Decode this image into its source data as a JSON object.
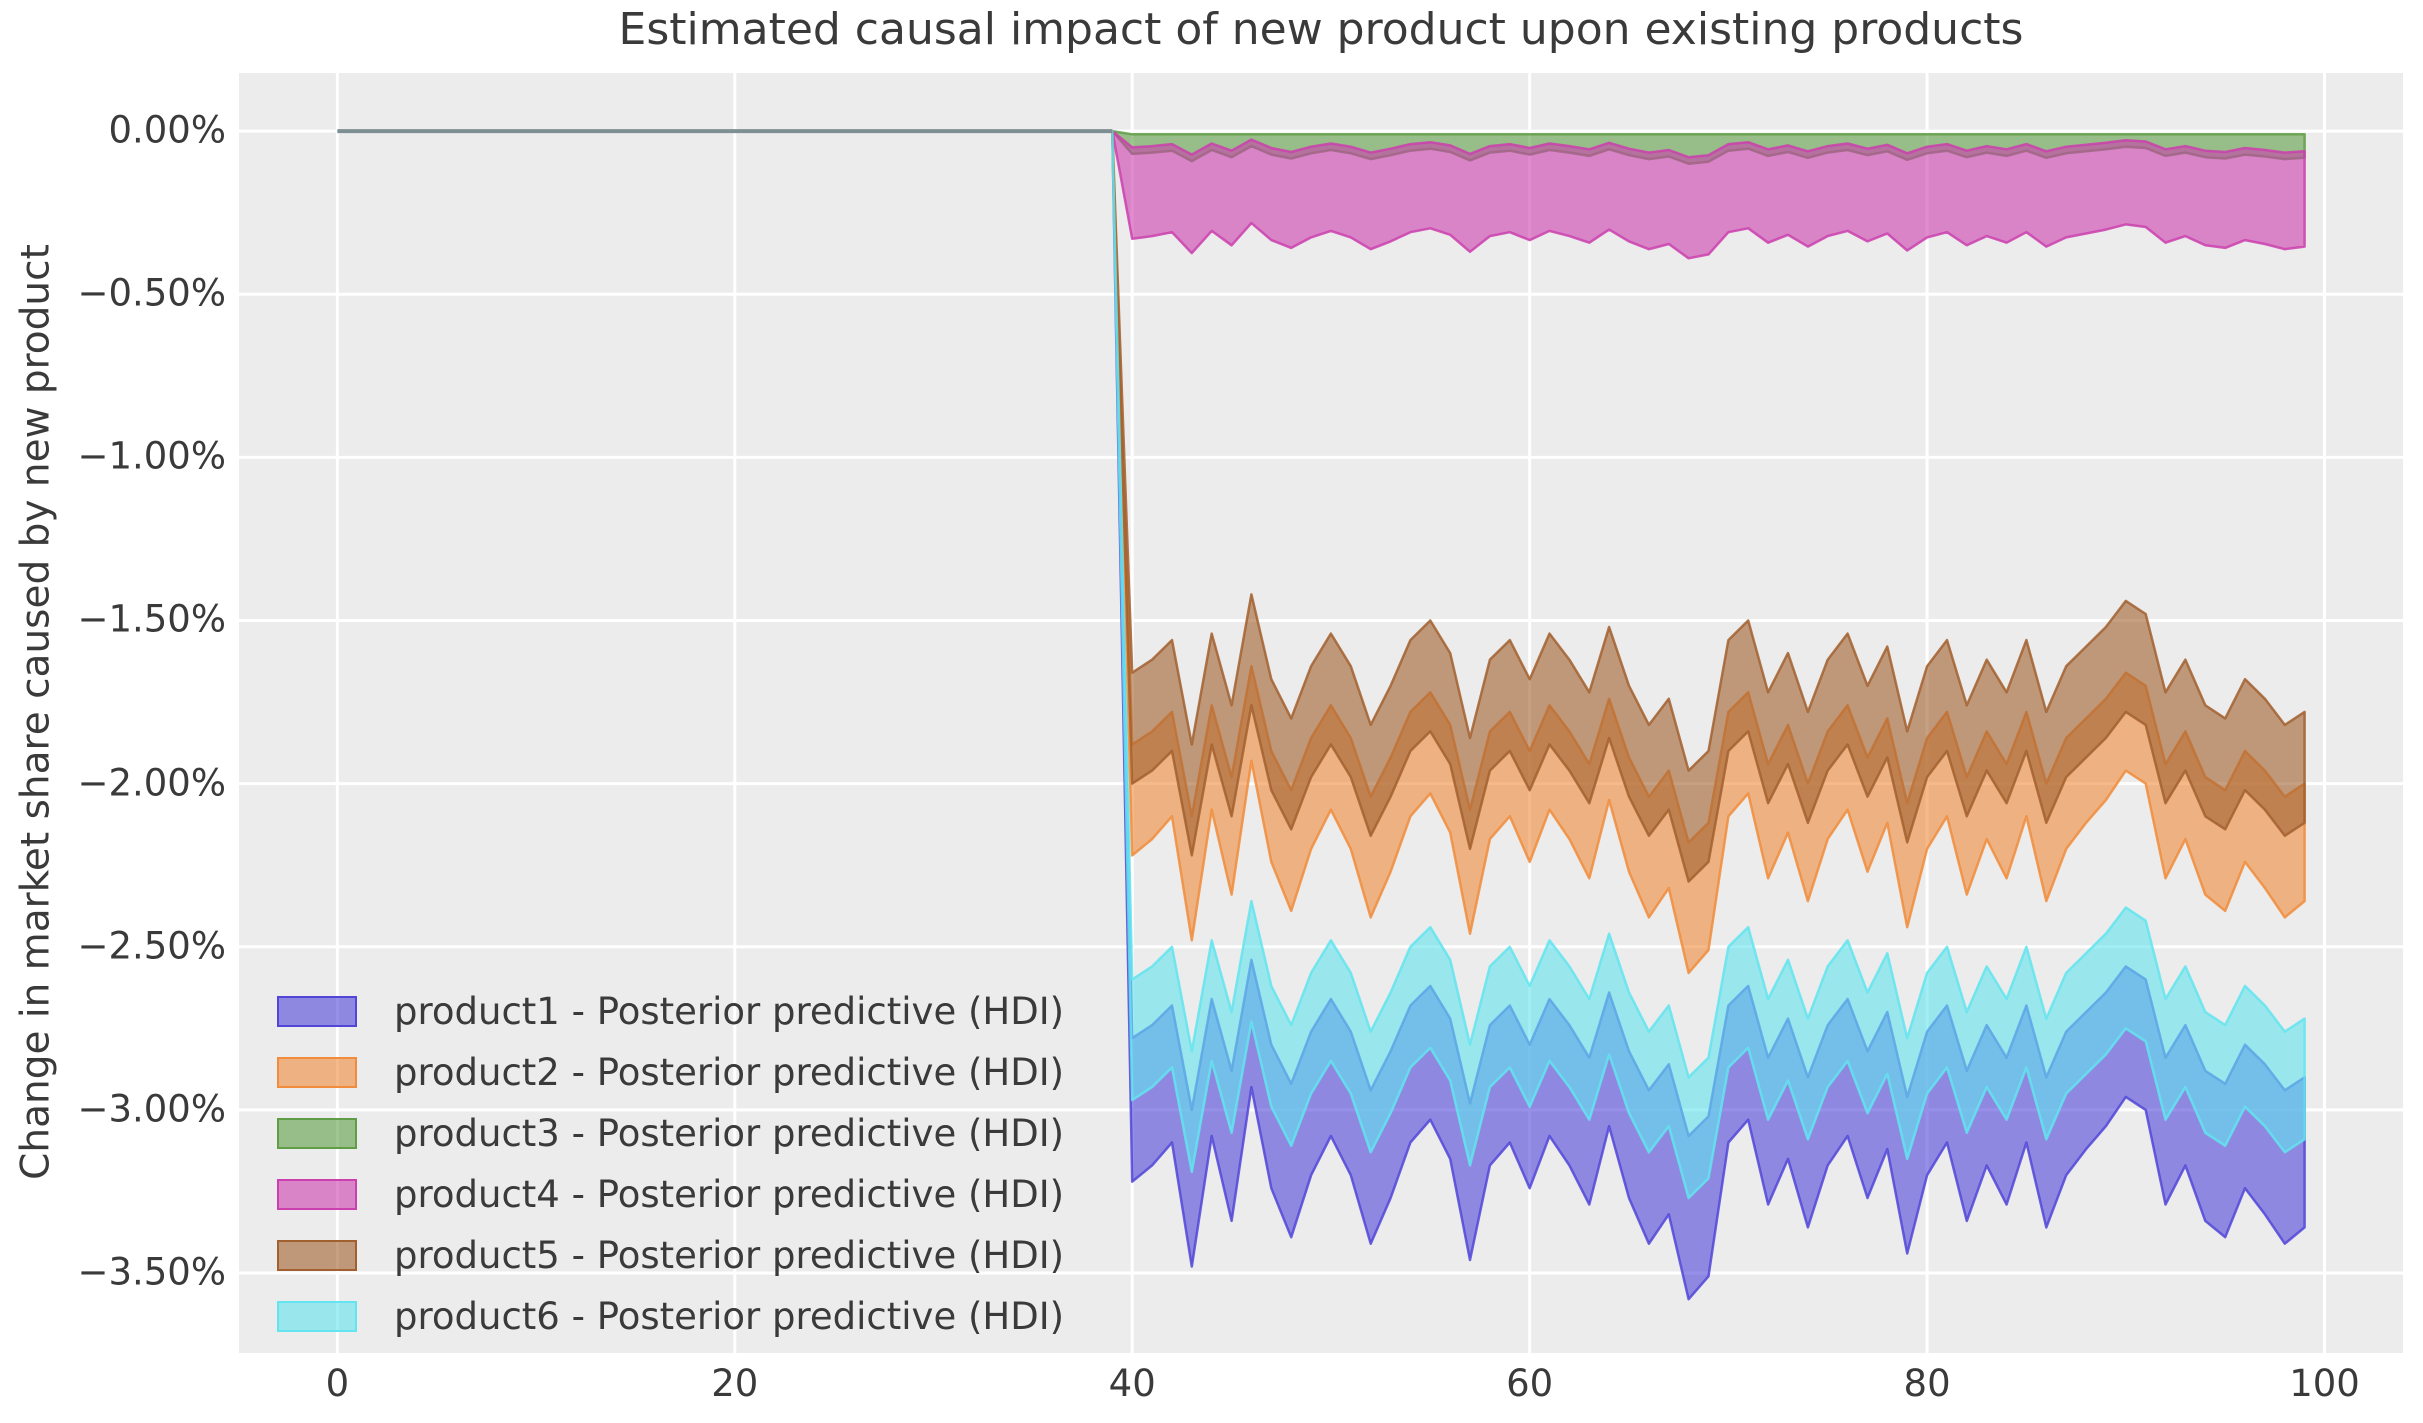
{
  "figure": {
    "title": "Estimated causal impact of new product upon existing products",
    "ylabel": "Change in market share caused by new product",
    "xlabel": "",
    "background": "#ffffff",
    "axes_background": "#ececec",
    "grid_color": "#ffffff",
    "text_color": "#3a3a3a"
  },
  "chart_data": {
    "type": "area",
    "title": "Estimated causal impact of new product upon existing products",
    "xlabel": "",
    "ylabel": "Change in market share caused by new product",
    "grid": true,
    "legend_position": "lower left",
    "xlim": [
      -4.95,
      103.95
    ],
    "ylim": [
      0.178,
      -3.745
    ],
    "x_ticks": [
      {
        "label": "0",
        "value": 0
      },
      {
        "label": "20",
        "value": 20
      },
      {
        "label": "40",
        "value": 40
      },
      {
        "label": "60",
        "value": 60
      },
      {
        "label": "80",
        "value": 80
      },
      {
        "label": "100",
        "value": 100
      }
    ],
    "y_ticks": [
      {
        "label": "0.00%",
        "value": 0
      },
      {
        "label": "−0.50%",
        "value": -0.5
      },
      {
        "label": "−1.00%",
        "value": -1.0
      },
      {
        "label": "−1.50%",
        "value": -1.5
      },
      {
        "label": "−2.00%",
        "value": -2.0
      },
      {
        "label": "−2.50%",
        "value": -2.5
      },
      {
        "label": "−3.00%",
        "value": -3.0
      },
      {
        "label": "−3.50%",
        "value": -3.5
      }
    ],
    "style": {
      "fill_alpha": 0.6,
      "edge_alpha": 0.85,
      "edge_width": 2.5,
      "pre_line_width": 4
    },
    "pre_period": {
      "x": [
        0,
        39
      ],
      "value": 0,
      "line_color": "#7d8f92"
    },
    "intervention_x": 40,
    "x_post": [
      40,
      41,
      42,
      43,
      44,
      45,
      46,
      47,
      48,
      49,
      50,
      51,
      52,
      53,
      54,
      55,
      56,
      57,
      58,
      59,
      60,
      61,
      62,
      63,
      64,
      65,
      66,
      67,
      68,
      69,
      70,
      71,
      72,
      73,
      74,
      75,
      76,
      77,
      78,
      79,
      80,
      81,
      82,
      83,
      84,
      85,
      86,
      87,
      88,
      89,
      90,
      91,
      92,
      93,
      94,
      95,
      96,
      97,
      98,
      99
    ],
    "series": [
      {
        "name": "product1",
        "legend_label": "product1 - Posterior predictive (HDI)",
        "color": "#5146d8",
        "upper": [
          -2.78,
          -2.74,
          -2.68,
          -3.0,
          -2.66,
          -2.88,
          -2.54,
          -2.8,
          -2.92,
          -2.76,
          -2.66,
          -2.76,
          -2.94,
          -2.82,
          -2.68,
          -2.62,
          -2.72,
          -2.98,
          -2.74,
          -2.68,
          -2.8,
          -2.66,
          -2.74,
          -2.84,
          -2.64,
          -2.82,
          -2.94,
          -2.86,
          -3.08,
          -3.02,
          -2.68,
          -2.62,
          -2.84,
          -2.72,
          -2.9,
          -2.74,
          -2.66,
          -2.82,
          -2.7,
          -2.96,
          -2.76,
          -2.68,
          -2.88,
          -2.74,
          -2.84,
          -2.68,
          -2.9,
          -2.76,
          -2.7,
          -2.64,
          -2.56,
          -2.6,
          -2.84,
          -2.74,
          -2.88,
          -2.92,
          -2.8,
          -2.86,
          -2.94,
          -2.9
        ],
        "lower": [
          -3.22,
          -3.17,
          -3.1,
          -3.48,
          -3.08,
          -3.34,
          -2.93,
          -3.24,
          -3.39,
          -3.2,
          -3.08,
          -3.2,
          -3.41,
          -3.27,
          -3.1,
          -3.03,
          -3.15,
          -3.46,
          -3.17,
          -3.1,
          -3.24,
          -3.08,
          -3.17,
          -3.29,
          -3.05,
          -3.27,
          -3.41,
          -3.32,
          -3.58,
          -3.51,
          -3.1,
          -3.03,
          -3.29,
          -3.15,
          -3.36,
          -3.17,
          -3.08,
          -3.27,
          -3.12,
          -3.44,
          -3.2,
          -3.1,
          -3.34,
          -3.17,
          -3.29,
          -3.1,
          -3.36,
          -3.2,
          -3.12,
          -3.05,
          -2.96,
          -3.0,
          -3.29,
          -3.17,
          -3.34,
          -3.39,
          -3.24,
          -3.32,
          -3.41,
          -3.36
        ]
      },
      {
        "name": "product2",
        "legend_label": "product2 - Posterior predictive (HDI)",
        "color": "#f08c3c",
        "upper": [
          -1.88,
          -1.84,
          -1.78,
          -2.1,
          -1.76,
          -1.98,
          -1.64,
          -1.9,
          -2.02,
          -1.86,
          -1.76,
          -1.86,
          -2.04,
          -1.92,
          -1.78,
          -1.72,
          -1.82,
          -2.08,
          -1.84,
          -1.78,
          -1.9,
          -1.76,
          -1.84,
          -1.94,
          -1.74,
          -1.92,
          -2.04,
          -1.96,
          -2.18,
          -2.12,
          -1.78,
          -1.72,
          -1.94,
          -1.82,
          -2.0,
          -1.84,
          -1.76,
          -1.92,
          -1.8,
          -2.06,
          -1.86,
          -1.78,
          -1.98,
          -1.84,
          -1.94,
          -1.78,
          -2.0,
          -1.86,
          -1.8,
          -1.74,
          -1.66,
          -1.7,
          -1.94,
          -1.84,
          -1.98,
          -2.02,
          -1.9,
          -1.96,
          -2.04,
          -2.0
        ],
        "lower": [
          -2.22,
          -2.17,
          -2.1,
          -2.48,
          -2.08,
          -2.34,
          -1.93,
          -2.24,
          -2.39,
          -2.2,
          -2.08,
          -2.2,
          -2.41,
          -2.27,
          -2.1,
          -2.03,
          -2.15,
          -2.46,
          -2.17,
          -2.1,
          -2.24,
          -2.08,
          -2.17,
          -2.29,
          -2.05,
          -2.27,
          -2.41,
          -2.32,
          -2.58,
          -2.51,
          -2.1,
          -2.03,
          -2.29,
          -2.15,
          -2.36,
          -2.17,
          -2.08,
          -2.27,
          -2.12,
          -2.44,
          -2.2,
          -2.1,
          -2.34,
          -2.17,
          -2.29,
          -2.1,
          -2.36,
          -2.2,
          -2.12,
          -2.05,
          -1.96,
          -2.0,
          -2.29,
          -2.17,
          -2.34,
          -2.39,
          -2.24,
          -2.32,
          -2.41,
          -2.36
        ]
      },
      {
        "name": "product3",
        "legend_label": "product3 - Posterior predictive (HDI)",
        "color": "#5f9e46",
        "upper": [
          -0.01,
          -0.01,
          -0.01,
          -0.01,
          -0.01,
          -0.01,
          -0.01,
          -0.01,
          -0.01,
          -0.01,
          -0.01,
          -0.01,
          -0.01,
          -0.01,
          -0.01,
          -0.01,
          -0.01,
          -0.01,
          -0.01,
          -0.01,
          -0.01,
          -0.01,
          -0.01,
          -0.01,
          -0.01,
          -0.01,
          -0.01,
          -0.01,
          -0.01,
          -0.01,
          -0.01,
          -0.01,
          -0.01,
          -0.01,
          -0.01,
          -0.01,
          -0.01,
          -0.01,
          -0.01,
          -0.01,
          -0.01,
          -0.01,
          -0.01,
          -0.01,
          -0.01,
          -0.01,
          -0.01,
          -0.01,
          -0.01,
          -0.01,
          -0.01,
          -0.01,
          -0.01,
          -0.01,
          -0.01,
          -0.01,
          -0.01,
          -0.01,
          -0.01,
          -0.01
        ],
        "lower": [
          -0.07,
          -0.066,
          -0.06,
          -0.092,
          -0.058,
          -0.08,
          -0.046,
          -0.072,
          -0.084,
          -0.068,
          -0.058,
          -0.068,
          -0.086,
          -0.074,
          -0.06,
          -0.054,
          -0.064,
          -0.09,
          -0.066,
          -0.06,
          -0.072,
          -0.058,
          -0.066,
          -0.076,
          -0.056,
          -0.074,
          -0.086,
          -0.078,
          -0.1,
          -0.094,
          -0.06,
          -0.054,
          -0.076,
          -0.064,
          -0.082,
          -0.066,
          -0.058,
          -0.074,
          -0.062,
          -0.088,
          -0.068,
          -0.06,
          -0.08,
          -0.066,
          -0.076,
          -0.06,
          -0.082,
          -0.068,
          -0.062,
          -0.056,
          -0.048,
          -0.052,
          -0.076,
          -0.066,
          -0.08,
          -0.084,
          -0.072,
          -0.078,
          -0.086,
          -0.082
        ]
      },
      {
        "name": "product4",
        "legend_label": "product4 - Posterior predictive (HDI)",
        "color": "#cb3fae",
        "upper": [
          -0.05,
          -0.046,
          -0.04,
          -0.072,
          -0.038,
          -0.06,
          -0.026,
          -0.052,
          -0.064,
          -0.048,
          -0.038,
          -0.048,
          -0.066,
          -0.054,
          -0.04,
          -0.034,
          -0.044,
          -0.07,
          -0.046,
          -0.04,
          -0.052,
          -0.038,
          -0.046,
          -0.056,
          -0.036,
          -0.054,
          -0.066,
          -0.058,
          -0.08,
          -0.074,
          -0.04,
          -0.034,
          -0.056,
          -0.044,
          -0.062,
          -0.046,
          -0.038,
          -0.054,
          -0.042,
          -0.068,
          -0.048,
          -0.04,
          -0.06,
          -0.046,
          -0.056,
          -0.04,
          -0.062,
          -0.048,
          -0.042,
          -0.036,
          -0.028,
          -0.032,
          -0.056,
          -0.046,
          -0.06,
          -0.064,
          -0.052,
          -0.058,
          -0.066,
          -0.062
        ],
        "lower": [
          -0.33,
          -0.322,
          -0.31,
          -0.374,
          -0.306,
          -0.35,
          -0.282,
          -0.334,
          -0.358,
          -0.326,
          -0.306,
          -0.326,
          -0.362,
          -0.338,
          -0.31,
          -0.298,
          -0.318,
          -0.37,
          -0.322,
          -0.31,
          -0.334,
          -0.306,
          -0.322,
          -0.342,
          -0.302,
          -0.338,
          -0.362,
          -0.346,
          -0.39,
          -0.378,
          -0.31,
          -0.298,
          -0.342,
          -0.318,
          -0.354,
          -0.322,
          -0.306,
          -0.338,
          -0.314,
          -0.366,
          -0.326,
          -0.31,
          -0.35,
          -0.322,
          -0.342,
          -0.31,
          -0.354,
          -0.326,
          -0.314,
          -0.302,
          -0.286,
          -0.294,
          -0.342,
          -0.322,
          -0.35,
          -0.358,
          -0.334,
          -0.346,
          -0.362,
          -0.354
        ]
      },
      {
        "name": "product5",
        "legend_label": "product5 - Posterior predictive (HDI)",
        "color": "#a2602f",
        "upper": [
          -1.66,
          -1.62,
          -1.56,
          -1.88,
          -1.54,
          -1.76,
          -1.42,
          -1.68,
          -1.8,
          -1.64,
          -1.54,
          -1.64,
          -1.82,
          -1.7,
          -1.56,
          -1.5,
          -1.6,
          -1.86,
          -1.62,
          -1.56,
          -1.68,
          -1.54,
          -1.62,
          -1.72,
          -1.52,
          -1.7,
          -1.82,
          -1.74,
          -1.96,
          -1.9,
          -1.56,
          -1.5,
          -1.72,
          -1.6,
          -1.78,
          -1.62,
          -1.54,
          -1.7,
          -1.58,
          -1.84,
          -1.64,
          -1.56,
          -1.76,
          -1.62,
          -1.72,
          -1.56,
          -1.78,
          -1.64,
          -1.58,
          -1.52,
          -1.44,
          -1.48,
          -1.72,
          -1.62,
          -1.76,
          -1.8,
          -1.68,
          -1.74,
          -1.82,
          -1.78
        ],
        "lower": [
          -2.0,
          -1.96,
          -1.9,
          -2.22,
          -1.88,
          -2.1,
          -1.76,
          -2.02,
          -2.14,
          -1.98,
          -1.88,
          -1.98,
          -2.16,
          -2.04,
          -1.9,
          -1.84,
          -1.94,
          -2.2,
          -1.96,
          -1.9,
          -2.02,
          -1.88,
          -1.96,
          -2.06,
          -1.86,
          -2.04,
          -2.16,
          -2.08,
          -2.3,
          -2.24,
          -1.9,
          -1.84,
          -2.06,
          -1.94,
          -2.12,
          -1.96,
          -1.88,
          -2.04,
          -1.92,
          -2.18,
          -1.98,
          -1.9,
          -2.1,
          -1.96,
          -2.06,
          -1.9,
          -2.12,
          -1.98,
          -1.92,
          -1.86,
          -1.78,
          -1.82,
          -2.06,
          -1.96,
          -2.1,
          -2.14,
          -2.02,
          -2.08,
          -2.16,
          -2.12
        ]
      },
      {
        "name": "product6",
        "legend_label": "product6 - Posterior predictive (HDI)",
        "color": "#63e4ee",
        "upper": [
          -2.6,
          -2.56,
          -2.5,
          -2.82,
          -2.48,
          -2.7,
          -2.36,
          -2.62,
          -2.74,
          -2.58,
          -2.48,
          -2.58,
          -2.76,
          -2.64,
          -2.5,
          -2.44,
          -2.54,
          -2.8,
          -2.56,
          -2.5,
          -2.62,
          -2.48,
          -2.56,
          -2.66,
          -2.46,
          -2.64,
          -2.76,
          -2.68,
          -2.9,
          -2.84,
          -2.5,
          -2.44,
          -2.66,
          -2.54,
          -2.72,
          -2.56,
          -2.48,
          -2.64,
          -2.52,
          -2.78,
          -2.58,
          -2.5,
          -2.7,
          -2.56,
          -2.66,
          -2.5,
          -2.72,
          -2.58,
          -2.52,
          -2.46,
          -2.38,
          -2.42,
          -2.66,
          -2.56,
          -2.7,
          -2.74,
          -2.62,
          -2.68,
          -2.76,
          -2.72
        ],
        "lower": [
          -2.97,
          -2.93,
          -2.87,
          -3.19,
          -2.85,
          -3.07,
          -2.73,
          -2.99,
          -3.11,
          -2.95,
          -2.85,
          -2.95,
          -3.13,
          -3.01,
          -2.87,
          -2.81,
          -2.91,
          -3.17,
          -2.93,
          -2.87,
          -2.99,
          -2.85,
          -2.93,
          -3.03,
          -2.83,
          -3.01,
          -3.13,
          -3.05,
          -3.27,
          -3.21,
          -2.87,
          -2.81,
          -3.03,
          -2.91,
          -3.09,
          -2.93,
          -2.85,
          -3.01,
          -2.89,
          -3.15,
          -2.95,
          -2.87,
          -3.07,
          -2.93,
          -3.03,
          -2.87,
          -3.09,
          -2.95,
          -2.89,
          -2.83,
          -2.75,
          -2.79,
          -3.03,
          -2.93,
          -3.07,
          -3.11,
          -2.99,
          -3.05,
          -3.13,
          -3.09
        ]
      }
    ]
  }
}
